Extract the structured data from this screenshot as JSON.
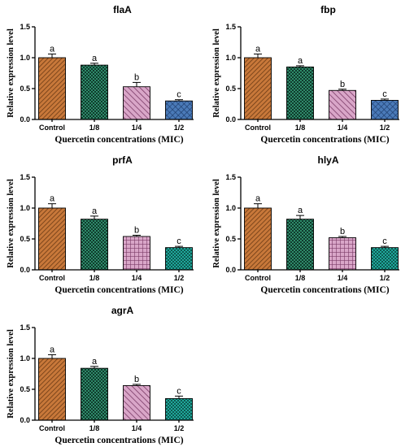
{
  "colors": {
    "control": "#c8783a",
    "c18": "#2f8a6a",
    "c14": "#d9a6c8",
    "c12": "#4a7ab8",
    "c12_alt": "#1fa79a"
  },
  "chart_data": [
    {
      "type": "bar",
      "title": "flaA",
      "xlabel": "Quercetin concentrations (MIC)",
      "ylabel": "Relative expression level",
      "categories": [
        "Control",
        "1/8",
        "1/4",
        "1/2"
      ],
      "values": [
        1.0,
        0.88,
        0.53,
        0.3
      ],
      "errors": [
        0.06,
        0.03,
        0.07,
        0.02
      ],
      "letters": [
        "a",
        "a",
        "b",
        "c"
      ],
      "ylim": [
        0.0,
        1.5
      ],
      "yticks": [
        "0.0",
        "0.5",
        "1.0",
        "1.5"
      ],
      "colors": [
        "#c8783a",
        "#2f8a6a",
        "#d9a6c8",
        "#4a7ab8"
      ]
    },
    {
      "type": "bar",
      "title": "fbp",
      "xlabel": "Quercetin concentrations (MIC)",
      "ylabel": "Relative expression level",
      "categories": [
        "Control",
        "1/8",
        "1/4",
        "1/2"
      ],
      "values": [
        1.0,
        0.85,
        0.47,
        0.31
      ],
      "errors": [
        0.06,
        0.02,
        0.02,
        0.02
      ],
      "letters": [
        "a",
        "a",
        "b",
        "c"
      ],
      "ylim": [
        0.0,
        1.5
      ],
      "yticks": [
        "0.0",
        "0.5",
        "1.0",
        "1.5"
      ],
      "colors": [
        "#c8783a",
        "#2f8a6a",
        "#d9a6c8",
        "#4a7ab8"
      ]
    },
    {
      "type": "bar",
      "title": "prfA",
      "xlabel": "Quercetin concentrations (MIC)",
      "ylabel": "Relative expression level",
      "categories": [
        "Control",
        "1/8",
        "1/4",
        "1/2"
      ],
      "values": [
        1.0,
        0.82,
        0.54,
        0.36
      ],
      "errors": [
        0.07,
        0.05,
        0.02,
        0.02
      ],
      "letters": [
        "a",
        "a",
        "b",
        "c"
      ],
      "ylim": [
        0.0,
        1.5
      ],
      "yticks": [
        "0.0",
        "0.5",
        "1.0",
        "1.5"
      ],
      "colors": [
        "#c8783a",
        "#2f8a6a",
        "#d9a6c8",
        "#1fa79a"
      ]
    },
    {
      "type": "bar",
      "title": "hlyA",
      "xlabel": "Quercetin concentrations (MIC)",
      "ylabel": "Relative expression level",
      "categories": [
        "Control",
        "1/8",
        "1/4",
        "1/2"
      ],
      "values": [
        1.0,
        0.82,
        0.52,
        0.36
      ],
      "errors": [
        0.07,
        0.06,
        0.02,
        0.02
      ],
      "letters": [
        "a",
        "a",
        "b",
        "c"
      ],
      "ylim": [
        0.0,
        1.5
      ],
      "yticks": [
        "0.0",
        "0.5",
        "1.0",
        "1.5"
      ],
      "colors": [
        "#c8783a",
        "#2f8a6a",
        "#d9a6c8",
        "#1fa79a"
      ]
    },
    {
      "type": "bar",
      "title": "agrA",
      "xlabel": "Quercetin concentrations (MIC)",
      "ylabel": "Relative expression level",
      "categories": [
        "Control",
        "1/8",
        "1/4",
        "1/2"
      ],
      "values": [
        1.0,
        0.84,
        0.56,
        0.35
      ],
      "errors": [
        0.06,
        0.03,
        0.02,
        0.04
      ],
      "letters": [
        "a",
        "a",
        "b",
        "c"
      ],
      "ylim": [
        0.0,
        1.5
      ],
      "yticks": [
        "0.0",
        "0.5",
        "1.0",
        "1.5"
      ],
      "colors": [
        "#c8783a",
        "#2f8a6a",
        "#d9a6c8",
        "#1fa79a"
      ]
    }
  ]
}
